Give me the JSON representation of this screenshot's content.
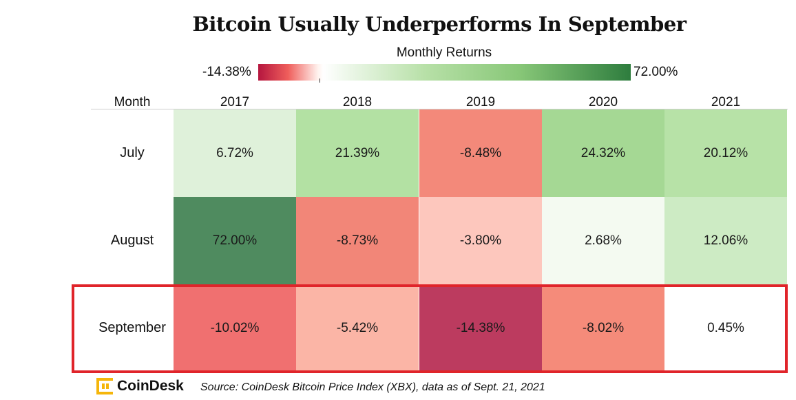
{
  "title": "Bitcoin Usually Underperforms In September",
  "legend": {
    "title": "Monthly Returns",
    "min_label": "-14.38%",
    "max_label": "72.00%"
  },
  "table": {
    "month_header": "Month",
    "years": [
      "2017",
      "2018",
      "2019",
      "2020",
      "2021"
    ],
    "rows": [
      {
        "month": "July",
        "values": [
          "6.72%",
          "21.39%",
          "-8.48%",
          "24.32%",
          "20.12%"
        ],
        "colors": [
          "#dff1da",
          "#b3e1a3",
          "#f3897a",
          "#a5d894",
          "#b7e2a7"
        ]
      },
      {
        "month": "August",
        "values": [
          "72.00%",
          "-8.73%",
          "-3.80%",
          "2.68%",
          "12.06%"
        ],
        "colors": [
          "#4f8b5f",
          "#f28678",
          "#fdc7bd",
          "#f4faf1",
          "#cdebc4"
        ]
      },
      {
        "month": "September",
        "values": [
          "-10.02%",
          "-5.42%",
          "-14.38%",
          "-8.02%",
          "0.45%"
        ],
        "colors": [
          "#f07070",
          "#fbb5a6",
          "#bc3b5f",
          "#f58b7a",
          "#ffffff"
        ]
      }
    ]
  },
  "highlight_color": "#e0242a",
  "footer": {
    "logo_text": "CoinDesk",
    "source": "Source: CoinDesk Bitcoin Price Index (XBX), data as of Sept. 21, 2021"
  },
  "chart_data": {
    "type": "heatmap",
    "title": "Bitcoin Usually Underperforms In September",
    "legend_title": "Monthly Returns",
    "color_range": [
      -14.38,
      72.0
    ],
    "x_categories": [
      "2017",
      "2018",
      "2019",
      "2020",
      "2021"
    ],
    "y_categories": [
      "July",
      "August",
      "September"
    ],
    "values": [
      [
        6.72,
        21.39,
        -8.48,
        24.32,
        20.12
      ],
      [
        72.0,
        -8.73,
        -3.8,
        2.68,
        12.06
      ],
      [
        -10.02,
        -5.42,
        -14.38,
        -8.02,
        0.45
      ]
    ],
    "unit": "%"
  }
}
